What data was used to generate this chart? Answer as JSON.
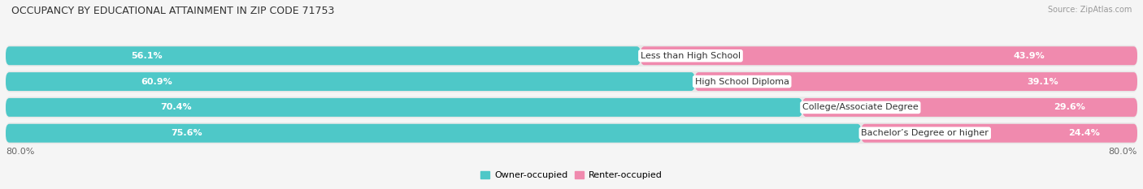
{
  "title": "OCCUPANCY BY EDUCATIONAL ATTAINMENT IN ZIP CODE 71753",
  "source": "Source: ZipAtlas.com",
  "categories": [
    "Less than High School",
    "High School Diploma",
    "College/Associate Degree",
    "Bachelor’s Degree or higher"
  ],
  "owner_values": [
    56.1,
    60.9,
    70.4,
    75.6
  ],
  "renter_values": [
    43.9,
    39.1,
    29.6,
    24.4
  ],
  "owner_color": "#4EC8C8",
  "renter_color": "#F08AAE",
  "row_bg_color": "#E8E8E8",
  "background_color": "#F5F5F5",
  "label_box_color": "#FFFFFF",
  "title_fontsize": 9,
  "bar_label_fontsize": 8,
  "cat_label_fontsize": 8,
  "source_fontsize": 7,
  "legend_fontsize": 8,
  "legend_labels": [
    "Owner-occupied",
    "Renter-occupied"
  ],
  "x_axis_label": "80.0%",
  "total_scale": 100.0
}
